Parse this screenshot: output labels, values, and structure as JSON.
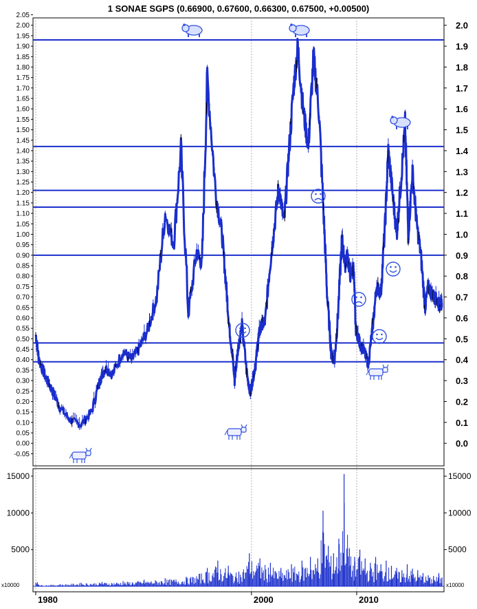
{
  "chart_data": [
    {
      "type": "line",
      "title": "1 SONAE SGPS (0.66900, 0.67600, 0.66300, 0.67500, +0.00500)",
      "xlabel": "",
      "ylabel": "",
      "xlim": [
        1977.5,
        2016.4
      ],
      "ylim": [
        -0.12,
        2.1
      ],
      "x_tick_labels": [
        "1980",
        "2000",
        "2010"
      ],
      "y_ticks_left": [
        "-0.05",
        "0.00",
        "0.05",
        "0.10",
        "0.15",
        "0.20",
        "0.25",
        "0.30",
        "0.35",
        "0.40",
        "0.45",
        "0.50",
        "0.55",
        "0.60",
        "0.65",
        "0.70",
        "0.75",
        "0.80",
        "0.85",
        "0.90",
        "0.95",
        "1.00",
        "1.05",
        "1.10",
        "1.15",
        "1.20",
        "1.25",
        "1.30",
        "1.35",
        "1.40",
        "1.45",
        "1.50",
        "1.55",
        "1.60",
        "1.65",
        "1.70",
        "1.75",
        "1.80",
        "1.85",
        "1.90",
        "1.95",
        "2.00",
        "2.05"
      ],
      "y_ticks_right": [
        "0.0",
        "0.1",
        "0.2",
        "0.3",
        "0.4",
        "0.5",
        "0.6",
        "0.7",
        "0.8",
        "0.9",
        "1.0",
        "1.1",
        "1.2",
        "1.3",
        "1.4",
        "1.5",
        "1.6",
        "1.7",
        "1.8",
        "1.9",
        "2.0"
      ],
      "horizontal_levels": [
        1.93,
        1.42,
        1.21,
        1.13,
        0.9,
        0.48,
        0.39
      ],
      "vertical_gridlines": [
        1977.7,
        1998.2,
        2008.2
      ],
      "grid": false,
      "series": [
        {
          "x": [
            1977.7,
            1978.0,
            1978.6,
            1979.3,
            1980.0,
            1981.0,
            1982.0,
            1983.0,
            1983.8,
            1984.3,
            1985.0,
            1986.0,
            1986.8,
            1987.5,
            1988.4,
            1989.2,
            1990.0,
            1990.8,
            1991.5,
            1992.2,
            1993.0,
            1993.5,
            1994.0,
            1994.8,
            1995.4,
            1995.8,
            1996.1,
            1996.4,
            1996.6,
            1996.9,
            1997.3,
            1997.8,
            1998.1,
            1998.3,
            1998.6,
            1998.9,
            1999.2,
            1999.5,
            1999.9,
            2000.3,
            2000.8,
            2001.3,
            2001.7,
            2002.2,
            2002.6,
            2003.1,
            2003.6,
            2004.1,
            2004.6,
            2005.1,
            2005.4,
            2005.8,
            2006.1,
            2006.4,
            2006.8,
            2007.1,
            2007.3,
            2007.6,
            2007.9,
            2008.1,
            2008.5,
            2008.9,
            2009.3,
            2009.7,
            2010.1,
            2010.5,
            2010.9,
            2011.2,
            2011.6,
            2012.0,
            2012.4,
            2012.8,
            2013.1,
            2013.5,
            2013.9,
            2014.3,
            2014.7,
            2015.0,
            2015.3,
            2015.6,
            2015.9,
            2016.1,
            2016.3
          ],
          "values": [
            0.52,
            0.4,
            0.32,
            0.25,
            0.17,
            0.11,
            0.09,
            0.15,
            0.3,
            0.36,
            0.33,
            0.44,
            0.4,
            0.45,
            0.55,
            0.7,
            1.1,
            0.95,
            1.4,
            0.62,
            0.92,
            0.85,
            1.75,
            1.2,
            1.0,
            0.75,
            0.55,
            0.42,
            0.3,
            0.45,
            0.56,
            0.32,
            0.24,
            0.3,
            0.38,
            0.52,
            0.57,
            0.58,
            0.82,
            1.0,
            1.23,
            1.05,
            1.35,
            1.7,
            1.9,
            1.6,
            1.42,
            1.85,
            1.6,
            1.05,
            0.7,
            0.42,
            0.4,
            0.6,
            0.98,
            0.85,
            0.9,
            0.8,
            0.85,
            0.55,
            0.48,
            0.44,
            0.38,
            0.55,
            0.75,
            0.72,
            1.05,
            1.4,
            1.2,
            1.0,
            1.25,
            1.52,
            1.0,
            1.3,
            1.05,
            0.9,
            0.65,
            0.75,
            0.72,
            0.7,
            0.68,
            0.66,
            0.67
          ]
        }
      ]
    },
    {
      "type": "bar",
      "title": "",
      "y_tick_labels": [
        "5000",
        "10000",
        "15000"
      ],
      "y_multiplier_label": "x10000",
      "ylim": [
        0,
        17000
      ],
      "x": [
        1978,
        1980,
        1982,
        1984,
        1986,
        1988,
        1990,
        1992,
        1994,
        1995,
        1996,
        1997,
        1998,
        1999,
        2000,
        2001,
        2002,
        2003,
        2003.8,
        2004.5,
        2005,
        2005.5,
        2006,
        2006.5,
        2007,
        2007.5,
        2008,
        2008.5,
        2009,
        2009.5,
        2010,
        2010.5,
        2011,
        2011.5,
        2012,
        2012.5,
        2013,
        2013.5,
        2014,
        2014.5,
        2015,
        2015.5,
        2016,
        2016.3
      ],
      "values": [
        200,
        300,
        500,
        600,
        700,
        900,
        1100,
        1300,
        2500,
        3500,
        2800,
        2000,
        4500,
        3800,
        3200,
        2500,
        3000,
        3500,
        4000,
        3800,
        10300,
        5500,
        4500,
        6500,
        15300,
        5200,
        4000,
        5000,
        3800,
        3200,
        4000,
        3000,
        3500,
        2800,
        2500,
        2200,
        3000,
        2400,
        2200,
        1800,
        1500,
        1400,
        1800,
        1200
      ]
    }
  ],
  "annotations": {
    "bear_icons": [
      "bear-icon",
      "bear-icon",
      "bear-icon"
    ],
    "bull_icons": [
      "bull-icon",
      "bull-icon",
      "bull-icon"
    ],
    "smiley_icons": [
      "smiley-icon",
      "smiley-icon",
      "smiley-icon"
    ],
    "frown_icons": [
      "frown-icon",
      "frown-icon"
    ]
  },
  "colors": {
    "price_line": "#1a2ecc",
    "price_dark": "#000000",
    "level_line": "#1a2ecc",
    "volume_bar": "#1a2ecc",
    "icon": "#3050e0"
  }
}
